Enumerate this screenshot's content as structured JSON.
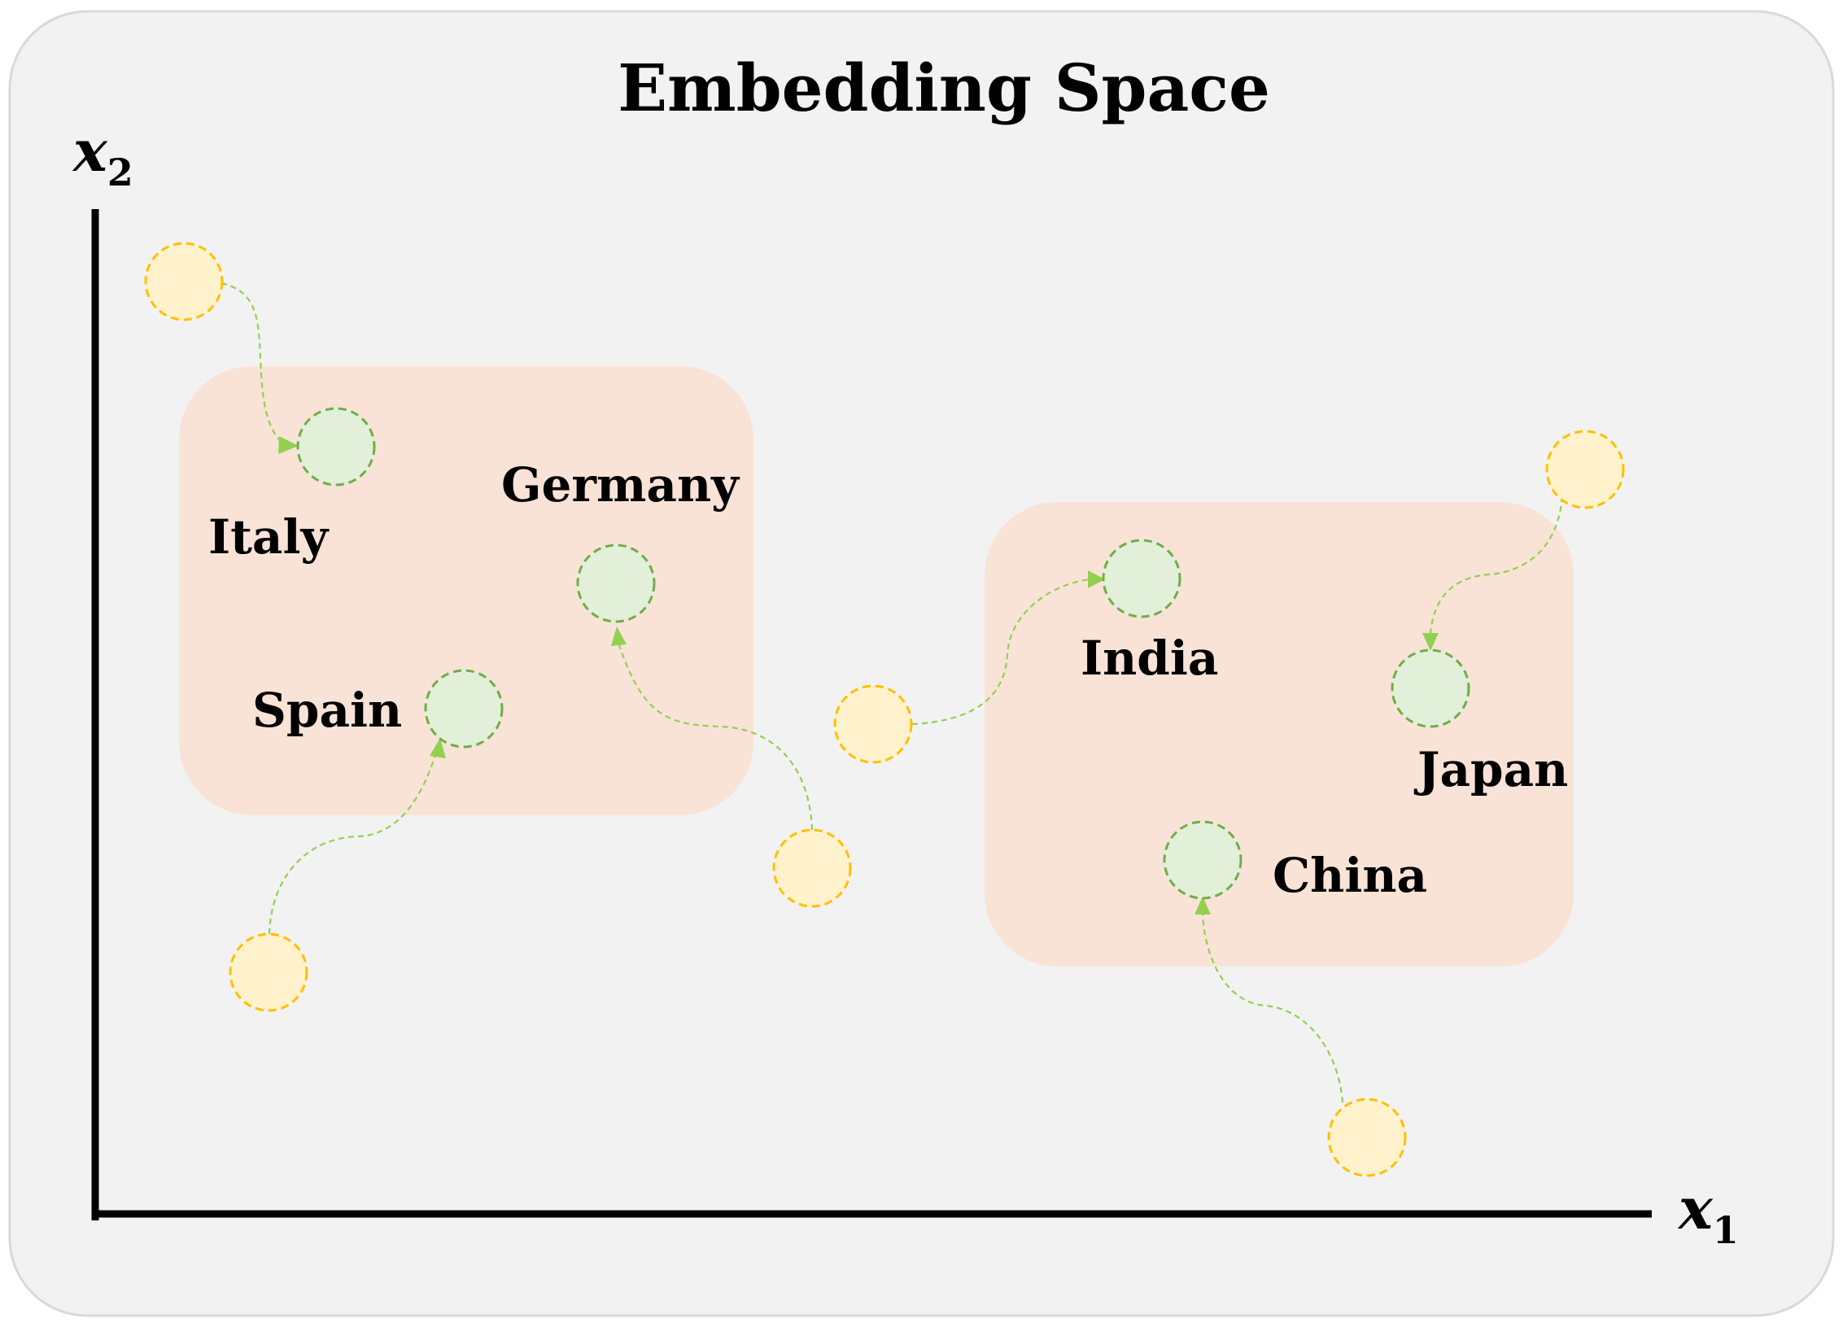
{
  "diagram": {
    "title": "Embedding Space",
    "axes": {
      "x": {
        "symbol": "x",
        "subscript": "1"
      },
      "y": {
        "symbol": "x",
        "subscript": "2"
      }
    },
    "clusters": [
      {
        "id": "europe-cluster",
        "members": [
          "Italy",
          "Germany",
          "Spain"
        ]
      },
      {
        "id": "asia-cluster",
        "members": [
          "India",
          "Japan",
          "China"
        ]
      }
    ],
    "countries": [
      {
        "id": "italy",
        "label": "Italy"
      },
      {
        "id": "germany",
        "label": "Germany"
      },
      {
        "id": "spain",
        "label": "Spain"
      },
      {
        "id": "india",
        "label": "India"
      },
      {
        "id": "japan",
        "label": "Japan"
      },
      {
        "id": "china",
        "label": "China"
      }
    ],
    "colors": {
      "panel": "#f2f2f2",
      "cluster": "#f9e3d7",
      "source_fill": "#fff2cc",
      "source_stroke": "#ffc000",
      "target_fill": "#e2f0d9",
      "target_stroke": "#70ad47",
      "arrow": "#92d050"
    }
  }
}
